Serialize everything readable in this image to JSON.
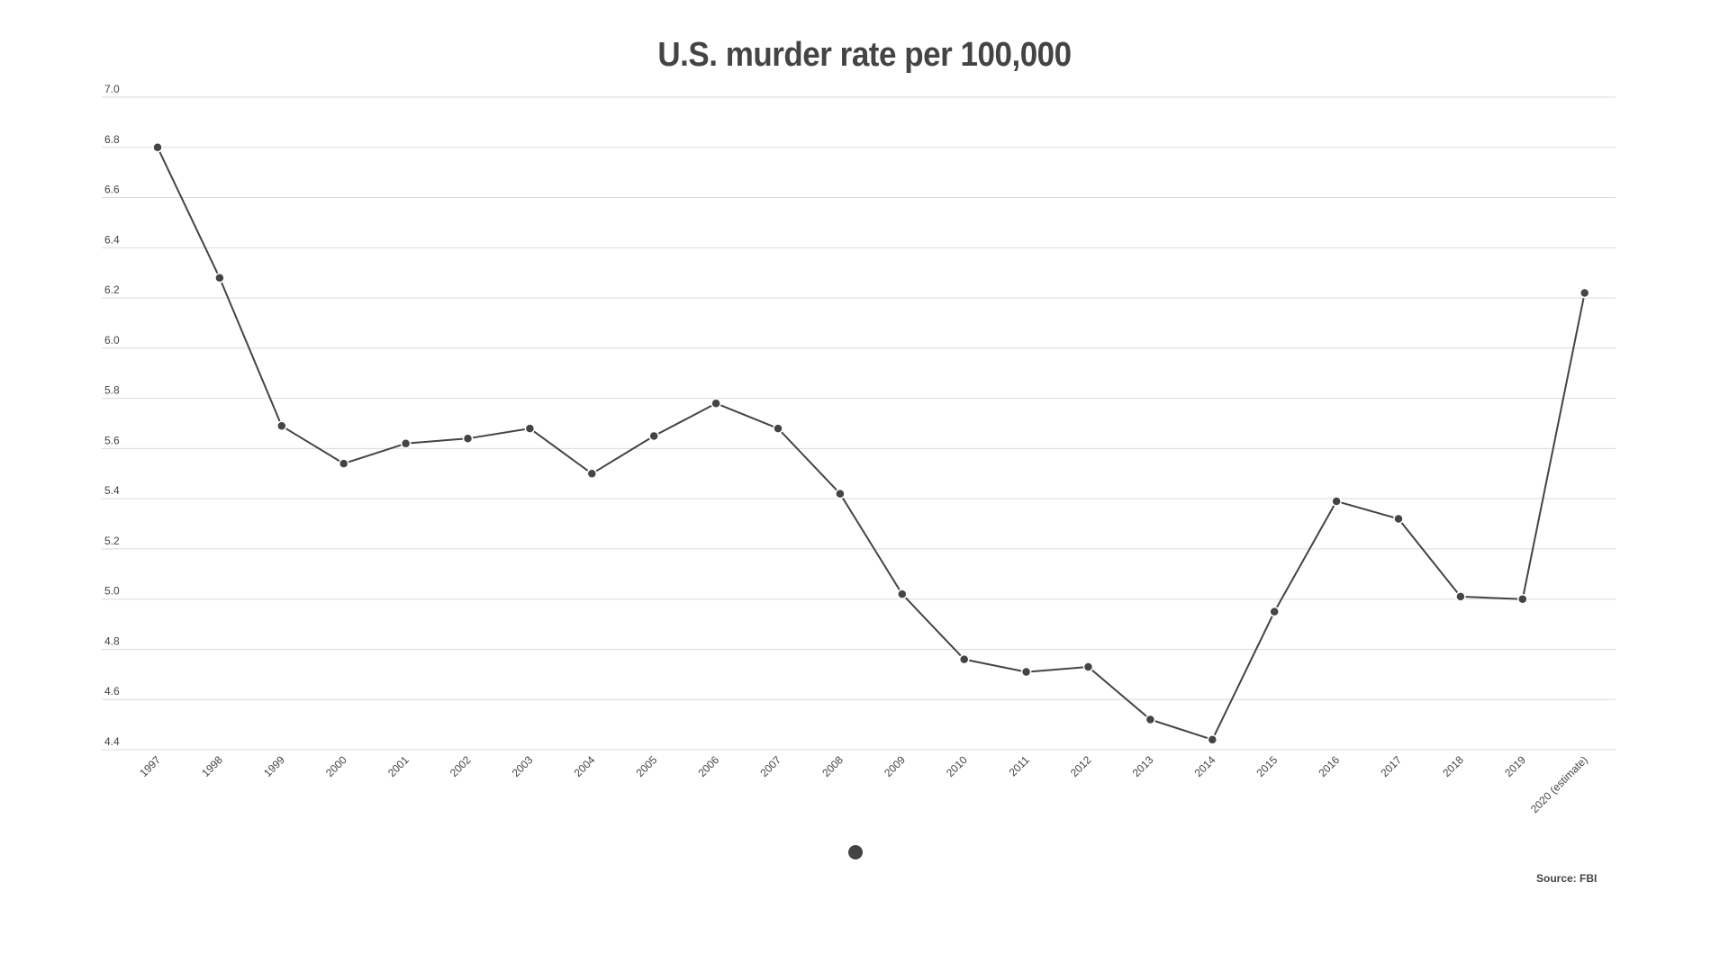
{
  "chart_data": {
    "type": "line",
    "title": "U.S. murder rate per 100,000",
    "xlabel": "",
    "ylabel": "",
    "categories": [
      "1997",
      "1998",
      "1999",
      "2000",
      "2001",
      "2002",
      "2003",
      "2004",
      "2005",
      "2006",
      "2007",
      "2008",
      "2009",
      "2010",
      "2011",
      "2012",
      "2013",
      "2014",
      "2015",
      "2016",
      "2017",
      "2018",
      "2019",
      "2020 (estimate)"
    ],
    "series": [
      {
        "name": "Murder rate per 100,000",
        "color": "#444444",
        "values": [
          6.8,
          6.28,
          5.69,
          5.54,
          5.62,
          5.64,
          5.68,
          5.5,
          5.65,
          5.78,
          5.68,
          5.42,
          5.02,
          4.76,
          4.71,
          4.73,
          4.52,
          4.44,
          4.95,
          5.39,
          5.32,
          5.01,
          5.0,
          6.22
        ]
      }
    ],
    "ylim": [
      4.4,
      7.0
    ],
    "yticks": [
      "4.4",
      "4.6",
      "4.8",
      "5.0",
      "5.2",
      "5.4",
      "5.6",
      "5.8",
      "6.0",
      "6.2",
      "6.4",
      "6.6",
      "6.8",
      "7.0"
    ],
    "grid": true,
    "legend_position": "bottom-center",
    "source": "Source: FBI"
  },
  "colors": {
    "line": "#444444",
    "grid": "#d9d9d9",
    "text": "#444444",
    "background": "#ffffff"
  },
  "legend": {
    "marker_icon": "circle-marker"
  }
}
